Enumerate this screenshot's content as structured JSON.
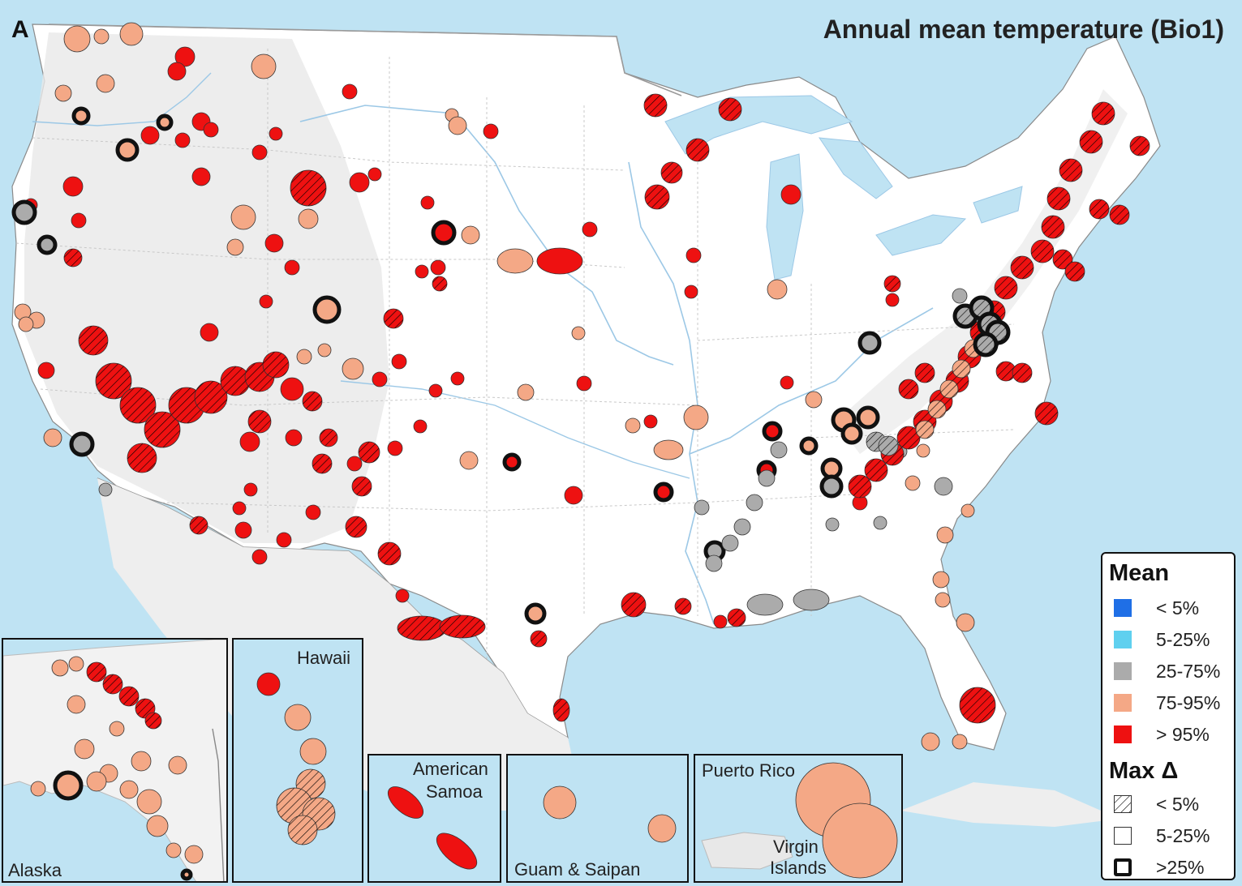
{
  "panel_letter": "A",
  "title": "Annual mean temperature (Bio1)",
  "colors": {
    "ocean": "#bfe3f3",
    "land": "#ffffff",
    "relief": "#e3e3e3",
    "river": "#9cc8e6",
    "border": "#9a9a9a",
    "lt5": "#1f6fe6",
    "p5_25": "#5fd0ef",
    "p25_75": "#ababab",
    "p75_95": "#f4a886",
    "gt95": "#ee1111"
  },
  "insets": {
    "alaska": "Alaska",
    "hawaii": "Hawaii",
    "samoa_line1": "American",
    "samoa_line2": "Samoa",
    "guam": "Guam & Saipan",
    "puerto_rico": "Puerto Rico",
    "virgin_line1": "Virgin",
    "virgin_line2": "Islands"
  },
  "legend": {
    "mean_title": "Mean",
    "mean_items": [
      {
        "label": "< 5%",
        "color": "#1f6fe6"
      },
      {
        "label": "5-25%",
        "color": "#5fd0ef"
      },
      {
        "label": "25-75%",
        "color": "#ababab"
      },
      {
        "label": "75-95%",
        "color": "#f4a886"
      },
      {
        "label": "> 95%",
        "color": "#ee1111"
      }
    ],
    "delta_title": "Max Δ",
    "delta_items": [
      {
        "label": "< 5%",
        "style": "hatched"
      },
      {
        "label": "5-25%",
        "style": "thin outline"
      },
      {
        "label": ">25%",
        "style": "thick outline"
      }
    ]
  }
}
